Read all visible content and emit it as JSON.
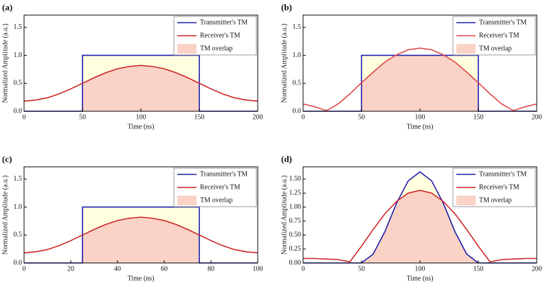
{
  "chart_data": [
    {
      "type": "line",
      "panel_label": "(a)",
      "xlabel": "Time (ns)",
      "ylabel": "Normalized Amplitude (a.u.)",
      "xlim": [
        0,
        200
      ],
      "ylim": [
        0,
        1.72
      ],
      "xticks": [
        0,
        50,
        100,
        150,
        200
      ],
      "yticks": [
        {
          "value": 0,
          "label": "0.0"
        },
        {
          "value": 0.5,
          "label": "0.5"
        },
        {
          "value": 1,
          "label": "1.0"
        },
        {
          "value": 1.5,
          "label": "1.5"
        }
      ],
      "legend": "upper right",
      "series": [
        {
          "name": "Transmitter's TM",
          "style": "line",
          "color": "#1c1caa",
          "fill": "#ffffe0",
          "x": [
            0,
            50,
            50,
            150,
            150,
            200
          ],
          "values": [
            0,
            0,
            1,
            1,
            0,
            0
          ]
        },
        {
          "name": "Receiver's TM",
          "style": "line",
          "color": "#cc2222",
          "x": [
            0,
            10,
            20,
            30,
            40,
            50,
            60,
            70,
            80,
            90,
            100,
            110,
            120,
            130,
            140,
            150,
            160,
            170,
            180,
            190,
            200
          ],
          "values": [
            0.18,
            0.2,
            0.24,
            0.31,
            0.4,
            0.5,
            0.6,
            0.69,
            0.76,
            0.8,
            0.82,
            0.8,
            0.76,
            0.69,
            0.6,
            0.5,
            0.4,
            0.31,
            0.24,
            0.2,
            0.18
          ]
        },
        {
          "name": "TM overlap",
          "style": "area",
          "color": "#fad2c6",
          "x": [
            50,
            60,
            70,
            80,
            90,
            100,
            110,
            120,
            130,
            140,
            150
          ],
          "values": [
            0.5,
            0.6,
            0.69,
            0.76,
            0.8,
            0.82,
            0.8,
            0.76,
            0.69,
            0.6,
            0.5
          ]
        }
      ]
    },
    {
      "type": "line",
      "panel_label": "(b)",
      "xlabel": "Time (ns)",
      "ylabel": "Normalized Amplitude (a.u.)",
      "xlim": [
        0,
        200
      ],
      "ylim": [
        0,
        1.72
      ],
      "xticks": [
        0,
        50,
        100,
        150,
        200
      ],
      "yticks": [
        {
          "value": 0,
          "label": "0.0"
        },
        {
          "value": 0.5,
          "label": "0.5"
        },
        {
          "value": 1,
          "label": "1.0"
        },
        {
          "value": 1.5,
          "label": "1.5"
        }
      ],
      "legend": "upper right",
      "series": [
        {
          "name": "Transmitter's TM",
          "style": "line",
          "color": "#1c1caa",
          "fill": "#ffffe0",
          "x": [
            0,
            50,
            50,
            150,
            150,
            200
          ],
          "values": [
            0,
            0,
            1,
            1,
            0,
            0
          ]
        },
        {
          "name": "Receiver's TM",
          "style": "line",
          "color": "#e04444",
          "x": [
            0,
            10,
            20,
            30,
            40,
            50,
            60,
            70,
            80,
            90,
            100,
            110,
            120,
            130,
            140,
            150,
            160,
            170,
            180,
            190,
            200
          ],
          "values": [
            0.13,
            0.08,
            0.01,
            0.13,
            0.31,
            0.51,
            0.7,
            0.88,
            1.01,
            1.1,
            1.13,
            1.1,
            1.01,
            0.88,
            0.7,
            0.51,
            0.31,
            0.13,
            0.01,
            0.08,
            0.13
          ]
        },
        {
          "name": "TM overlap",
          "style": "area",
          "color": "#fad2c6",
          "x": [
            50,
            60,
            70,
            80,
            90,
            100,
            110,
            120,
            130,
            140,
            150
          ],
          "values": [
            0.51,
            0.7,
            0.88,
            1,
            1,
            1,
            1,
            1,
            0.88,
            0.7,
            0.51
          ]
        }
      ]
    },
    {
      "type": "line",
      "panel_label": "(c)",
      "xlabel": "Time (ns)",
      "ylabel": "Normalized Amplitude (a.u.)",
      "xlim": [
        0,
        100
      ],
      "ylim": [
        0,
        1.72
      ],
      "xticks": [
        0,
        20,
        40,
        60,
        80,
        100
      ],
      "yticks": [
        {
          "value": 0,
          "label": "0.0"
        },
        {
          "value": 0.5,
          "label": "0.5"
        },
        {
          "value": 1,
          "label": "1.0"
        },
        {
          "value": 1.5,
          "label": "1.5"
        }
      ],
      "legend": "upper right",
      "series": [
        {
          "name": "Transmitter's TM",
          "style": "line",
          "color": "#1c1caa",
          "fill": "#ffffe0",
          "x": [
            0,
            25,
            25,
            75,
            75,
            100
          ],
          "values": [
            0,
            0,
            1,
            1,
            0,
            0
          ]
        },
        {
          "name": "Receiver's TM",
          "style": "line",
          "color": "#cc2222",
          "x": [
            0,
            5,
            10,
            15,
            20,
            25,
            30,
            35,
            40,
            45,
            50,
            55,
            60,
            65,
            70,
            75,
            80,
            85,
            90,
            95,
            100
          ],
          "values": [
            0.18,
            0.2,
            0.24,
            0.31,
            0.4,
            0.5,
            0.6,
            0.69,
            0.76,
            0.8,
            0.82,
            0.8,
            0.76,
            0.69,
            0.6,
            0.5,
            0.4,
            0.31,
            0.24,
            0.2,
            0.18
          ]
        },
        {
          "name": "TM overlap",
          "style": "area",
          "color": "#fad2c6",
          "x": [
            25,
            30,
            35,
            40,
            45,
            50,
            55,
            60,
            65,
            70,
            75
          ],
          "values": [
            0.5,
            0.6,
            0.69,
            0.76,
            0.8,
            0.82,
            0.8,
            0.76,
            0.69,
            0.6,
            0.5
          ]
        }
      ]
    },
    {
      "type": "line",
      "panel_label": "(d)",
      "xlabel": "Time (ns)",
      "ylabel": "Normalized Amplitude (a.u.)",
      "xlim": [
        0,
        200
      ],
      "ylim": [
        0,
        1.72
      ],
      "xticks": [
        0,
        50,
        100,
        150,
        200
      ],
      "yticks": [
        {
          "value": 0,
          "label": "0.00"
        },
        {
          "value": 0.25,
          "label": "0.25"
        },
        {
          "value": 0.5,
          "label": "0.50"
        },
        {
          "value": 0.75,
          "label": "0.75"
        },
        {
          "value": 1,
          "label": "1.00"
        },
        {
          "value": 1.25,
          "label": "1.25"
        },
        {
          "value": 1.5,
          "label": "1.50"
        }
      ],
      "legend": "upper right",
      "series": [
        {
          "name": "Transmitter's TM",
          "style": "line",
          "color": "#1c1caa",
          "fill": "#ffffe0",
          "x": [
            0,
            10,
            20,
            30,
            40,
            50,
            60,
            70,
            80,
            90,
            100,
            110,
            120,
            130,
            140,
            150,
            160,
            170,
            180,
            190,
            200
          ],
          "values": [
            0,
            0,
            0,
            0,
            0,
            0,
            0.16,
            0.56,
            1.07,
            1.47,
            1.63,
            1.47,
            1.07,
            0.56,
            0.16,
            0,
            0,
            0,
            0,
            0,
            0
          ]
        },
        {
          "name": "Receiver's TM",
          "style": "line",
          "color": "#cc2222",
          "x": [
            0,
            10,
            20,
            30,
            40,
            50,
            60,
            70,
            80,
            90,
            100,
            110,
            120,
            130,
            140,
            150,
            160,
            170,
            180,
            190,
            200
          ],
          "values": [
            0.08,
            0.08,
            0.07,
            0.06,
            0.02,
            0.3,
            0.6,
            0.88,
            1.1,
            1.25,
            1.3,
            1.25,
            1.1,
            0.88,
            0.6,
            0.3,
            0.02,
            0.06,
            0.07,
            0.08,
            0.08
          ]
        },
        {
          "name": "TM overlap",
          "style": "area",
          "color": "#fad2c6",
          "x": [
            50,
            60,
            70,
            80,
            90,
            100,
            110,
            120,
            130,
            140,
            150
          ],
          "values": [
            0,
            0.16,
            0.56,
            1.07,
            1.25,
            1.3,
            1.25,
            1.07,
            0.56,
            0.16,
            0
          ]
        }
      ]
    }
  ]
}
